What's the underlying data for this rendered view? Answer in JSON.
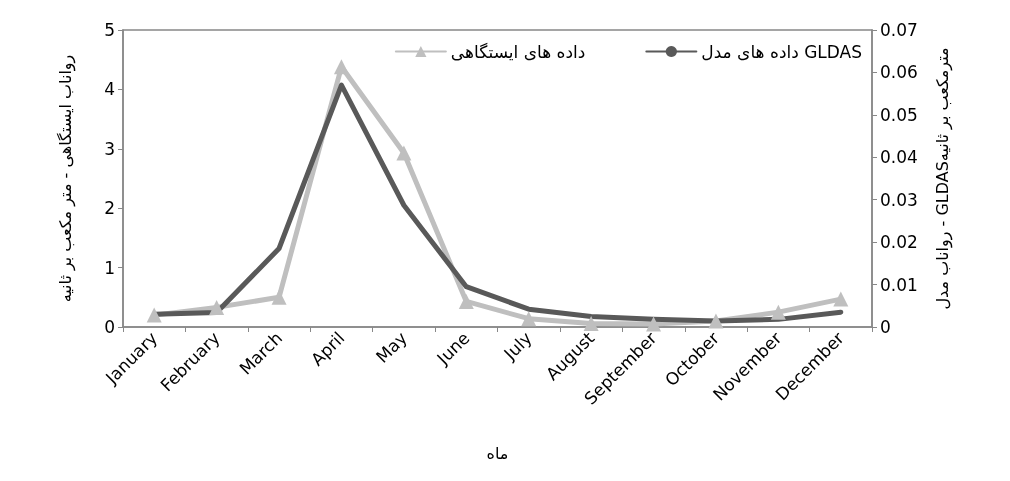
{
  "chart_data": {
    "type": "line",
    "xlabel": "ماه",
    "ylabel": "رواناب ایستگاهی - متر مکعب بر ثانیه",
    "y2label": "رواناب مدل - GLDASمترمکعب بر ثانیه",
    "categories": [
      "January",
      "February",
      "March",
      "April",
      "May",
      "June",
      "July",
      "August",
      "September",
      "October",
      "November",
      "December"
    ],
    "series": [
      {
        "name": "داده های ایستگاهی",
        "color": "#bfbfbf",
        "marker": "triangle",
        "values": [
          0.2,
          0.33,
          0.5,
          4.38,
          2.93,
          0.43,
          0.14,
          0.06,
          0.05,
          0.1,
          0.25,
          0.47
        ]
      },
      {
        "name": "داده های مدل GLDAS",
        "color": "#595959",
        "marker": "none",
        "axis": "y2",
        "values": [
          0.003,
          0.0034,
          0.0185,
          0.057,
          0.0287,
          0.0095,
          0.0042,
          0.0025,
          0.0018,
          0.0014,
          0.0018,
          0.0035
        ]
      }
    ],
    "ylim": [
      0,
      5
    ],
    "yticks": [
      0,
      1,
      2,
      3,
      4,
      5
    ],
    "y2lim": [
      0,
      0.07
    ],
    "y2ticks": [
      0,
      0.01,
      0.02,
      0.03,
      0.04,
      0.05,
      0.06,
      0.07
    ],
    "grid": false,
    "legend": "top right"
  }
}
